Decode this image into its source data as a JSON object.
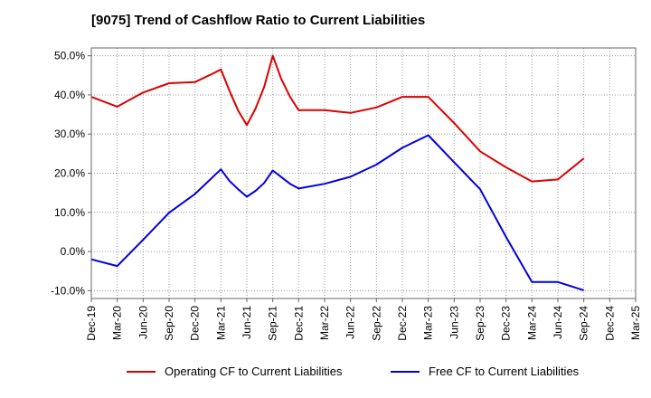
{
  "chart_data": {
    "type": "line",
    "title": "[9075]  Trend of Cashflow Ratio to Current Liabilities",
    "xlabel": "",
    "ylabel": "",
    "x_ticks": [
      "Dec-19",
      "Mar-20",
      "Jun-20",
      "Sep-20",
      "Dec-20",
      "Mar-21",
      "Jun-21",
      "Sep-21",
      "Dec-21",
      "Mar-22",
      "Jun-22",
      "Sep-22",
      "Dec-22",
      "Mar-23",
      "Jun-23",
      "Sep-23",
      "Dec-23",
      "Mar-24",
      "Jun-24",
      "Sep-24",
      "Dec-24",
      "Mar-25"
    ],
    "y_ticks": [
      "50.0%",
      "40.0%",
      "30.0%",
      "20.0%",
      "10.0%",
      "0.0%",
      "-10.0%"
    ],
    "ylim": [
      -12,
      52
    ],
    "y_tick_values": [
      50,
      40,
      30,
      20,
      10,
      0,
      -10
    ],
    "grid": true,
    "legend_position": "bottom",
    "series": [
      {
        "name": "Operating CF to Current Liabilities",
        "color": "#dd0000",
        "points": [
          [
            "Dec-19",
            39.5
          ],
          [
            "Mar-20",
            37.0
          ],
          [
            "Jun-20",
            40.6
          ],
          [
            "Sep-20",
            43.0
          ],
          [
            "Dec-20",
            43.3
          ],
          [
            "Feb-21",
            45.4
          ],
          [
            "Mar-21",
            46.5
          ],
          [
            "Apr-21",
            41.0
          ],
          [
            "May-21",
            36.0
          ],
          [
            "Jun-21",
            32.3
          ],
          [
            "Jul-21",
            36.5
          ],
          [
            "Aug-21",
            42.0
          ],
          [
            "Sep-21",
            50.0
          ],
          [
            "Oct-21",
            44.0
          ],
          [
            "Nov-21",
            39.5
          ],
          [
            "Dec-21",
            36.1
          ],
          [
            "Mar-22",
            36.1
          ],
          [
            "Jun-22",
            35.4
          ],
          [
            "Sep-22",
            36.8
          ],
          [
            "Dec-22",
            39.5
          ],
          [
            "Mar-23",
            39.5
          ],
          [
            "Jun-23",
            32.8
          ],
          [
            "Sep-23",
            25.6
          ],
          [
            "Dec-23",
            21.5
          ],
          [
            "Mar-24",
            17.9
          ],
          [
            "Jun-24",
            18.4
          ],
          [
            "Sep-24",
            23.8
          ]
        ]
      },
      {
        "name": "Free CF to Current Liabilities",
        "color": "#0000dd",
        "points": [
          [
            "Dec-19",
            -2.0
          ],
          [
            "Mar-20",
            -3.7
          ],
          [
            "Jun-20",
            3.0
          ],
          [
            "Sep-20",
            9.9
          ],
          [
            "Dec-20",
            14.7
          ],
          [
            "Mar-21",
            21.0
          ],
          [
            "Apr-21",
            18.0
          ],
          [
            "May-21",
            15.9
          ],
          [
            "Jun-21",
            14.0
          ],
          [
            "Jul-21",
            15.5
          ],
          [
            "Aug-21",
            17.5
          ],
          [
            "Sep-21",
            20.7
          ],
          [
            "Oct-21",
            19.0
          ],
          [
            "Nov-21",
            17.3
          ],
          [
            "Dec-21",
            16.1
          ],
          [
            "Mar-22",
            17.3
          ],
          [
            "Jun-22",
            19.1
          ],
          [
            "Sep-22",
            22.2
          ],
          [
            "Dec-22",
            26.5
          ],
          [
            "Mar-23",
            29.7
          ],
          [
            "Jun-23",
            22.8
          ],
          [
            "Sep-23",
            15.9
          ],
          [
            "Dec-23",
            3.7
          ],
          [
            "Mar-24",
            -7.8
          ],
          [
            "Jun-24",
            -7.8
          ],
          [
            "Sep-24",
            -9.9
          ]
        ]
      }
    ]
  }
}
